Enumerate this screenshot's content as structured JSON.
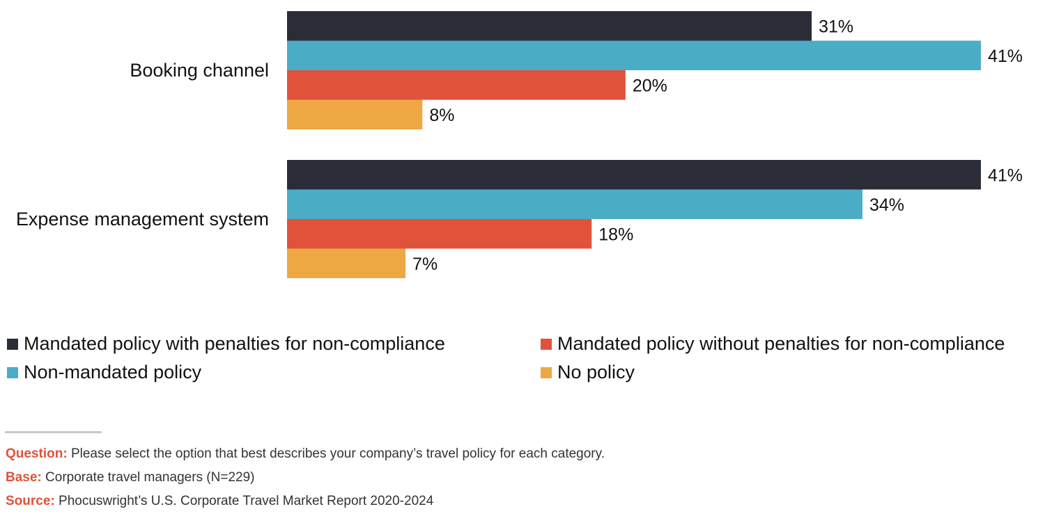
{
  "chart_data": {
    "type": "bar",
    "orientation": "horizontal",
    "categories": [
      "Booking channel",
      "Expense management system"
    ],
    "series": [
      {
        "name": "Mandated policy with penalties for non-compliance",
        "values": [
          31,
          41
        ],
        "labels": [
          "31%",
          "41%"
        ],
        "color": "#2a2d38"
      },
      {
        "name": "Non-mandated policy",
        "values": [
          41,
          34
        ],
        "labels": [
          "41%",
          "34%"
        ],
        "color": "#4bacc6"
      },
      {
        "name": "Mandated policy without penalties for non-compliance",
        "values": [
          20,
          18
        ],
        "labels": [
          "20%",
          "18%"
        ],
        "color": "#e0533a"
      },
      {
        "name": "No policy",
        "values": [
          8,
          7
        ],
        "labels": [
          "8%",
          "7%"
        ],
        "color": "#eda843"
      }
    ],
    "value_unit": "%",
    "xlim": [
      0,
      41
    ],
    "grid": false,
    "legend_position": "bottom"
  },
  "legend": {
    "items": [
      {
        "label": "Mandated policy with penalties for non-compliance",
        "color": "#2a2d38"
      },
      {
        "label": "Mandated policy without penalties for non-compliance",
        "color": "#e0533a"
      },
      {
        "label": "Non-mandated policy",
        "color": "#4bacc6"
      },
      {
        "label": "No policy",
        "color": "#eda843"
      }
    ]
  },
  "notes": {
    "question_key": "Question:",
    "question_text": " Please select the option that best describes your company’s travel policy for each category.",
    "base_key": "Base:",
    "base_text": " Corporate travel managers (N=229)",
    "source_key": "Source:",
    "source_text": " Phocuswright’s U.S. Corporate Travel Market Report 2020-2024"
  }
}
